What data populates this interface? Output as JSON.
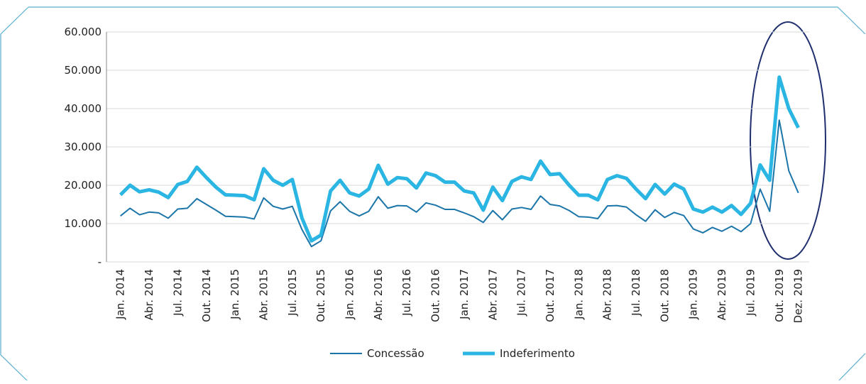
{
  "chart_data": {
    "type": "line",
    "categories": [
      "Jan. 2014",
      null,
      null,
      "Abr. 2014",
      null,
      null,
      "Jul. 2014",
      null,
      null,
      "Out. 2014",
      null,
      null,
      "Jan. 2015",
      null,
      null,
      "Abr. 2015",
      null,
      null,
      "Jul. 2015",
      null,
      null,
      "Out. 2015",
      null,
      null,
      "Jan. 2016",
      null,
      null,
      "Abr. 2016",
      null,
      null,
      "Jul. 2016",
      null,
      null,
      "Out. 2016",
      null,
      null,
      "Jan. 2017",
      null,
      null,
      "Abr. 2017",
      null,
      null,
      "Jul. 2017",
      null,
      null,
      "Out. 2017",
      null,
      null,
      "Jan. 2018",
      null,
      null,
      "Abr. 2018",
      null,
      null,
      "Jul. 2018",
      null,
      null,
      "Out. 2018",
      null,
      null,
      "Jan. 2019",
      null,
      null,
      "Abr. 2019",
      null,
      null,
      "Jul. 2019",
      null,
      null,
      "Out. 2019",
      null,
      "Dez. 2019"
    ],
    "series": [
      {
        "name": "Concessão",
        "color": "#1b75a8",
        "values": [
          12000,
          14000,
          12300,
          13000,
          12800,
          11400,
          13800,
          14000,
          16500,
          15000,
          13500,
          11900,
          11800,
          11700,
          11200,
          16700,
          14500,
          13800,
          14500,
          8500,
          4000,
          5500,
          13300,
          15700,
          13200,
          12000,
          13200,
          17000,
          14000,
          14700,
          14600,
          13000,
          15400,
          14800,
          13700,
          13700,
          12800,
          11800,
          10300,
          13400,
          11000,
          13800,
          14200,
          13700,
          17200,
          15000,
          14600,
          13400,
          11800,
          11700,
          11300,
          14600,
          14700,
          14300,
          12300,
          10600,
          13600,
          11600,
          12900,
          12100,
          8600,
          7600,
          9000,
          8000,
          9300,
          7900,
          10000,
          19000,
          13200,
          37000,
          23800,
          18000
        ]
      },
      {
        "name": "Indeferimento",
        "color": "#2bb5e2",
        "values": [
          17500,
          20000,
          18300,
          18800,
          18200,
          16800,
          20200,
          21000,
          24700,
          22000,
          19500,
          17500,
          17400,
          17300,
          16200,
          24300,
          21300,
          20000,
          21500,
          11500,
          5500,
          7000,
          18500,
          21300,
          18000,
          17200,
          19000,
          25200,
          20300,
          22000,
          21700,
          19300,
          23200,
          22500,
          20800,
          20800,
          18500,
          18000,
          13500,
          19500,
          16000,
          21000,
          22200,
          21500,
          26300,
          22800,
          23000,
          20000,
          17400,
          17400,
          16200,
          21500,
          22500,
          21800,
          19000,
          16500,
          20200,
          17700,
          20300,
          19000,
          13800,
          13000,
          14300,
          13000,
          14700,
          12400,
          15300,
          25300,
          21300,
          48200,
          40000,
          35000
        ]
      }
    ],
    "ylim": [
      0,
      60000
    ],
    "yticks": [
      {
        "value": 0,
        "label": "-"
      },
      {
        "value": 10000,
        "label": "10.000"
      },
      {
        "value": 20000,
        "label": "20.000"
      },
      {
        "value": 30000,
        "label": "30.000"
      },
      {
        "value": 40000,
        "label": "40.000"
      },
      {
        "value": 50000,
        "label": "50.000"
      },
      {
        "value": 60000,
        "label": "60.000"
      }
    ],
    "grid": true
  }
}
